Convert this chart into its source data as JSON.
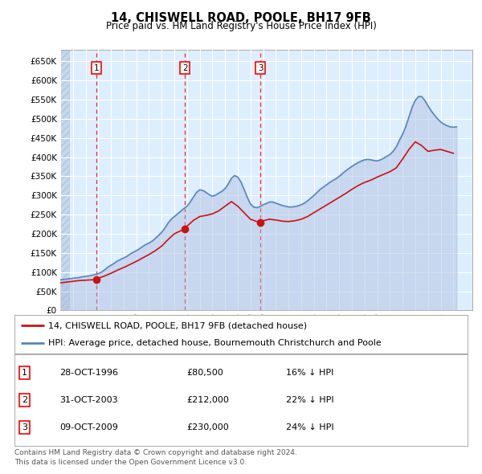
{
  "title": "14, CHISWELL ROAD, POOLE, BH17 9FB",
  "subtitle": "Price paid vs. HM Land Registry's House Price Index (HPI)",
  "ylim": [
    0,
    680000
  ],
  "yticks": [
    0,
    50000,
    100000,
    150000,
    200000,
    250000,
    300000,
    350000,
    400000,
    450000,
    500000,
    550000,
    600000,
    650000
  ],
  "ytick_labels": [
    "£0",
    "£50K",
    "£100K",
    "£150K",
    "£200K",
    "£250K",
    "£300K",
    "£350K",
    "£400K",
    "£450K",
    "£500K",
    "£550K",
    "£600K",
    "£650K"
  ],
  "xlim_start": 1994.0,
  "xlim_end": 2026.5,
  "plot_bg_color": "#ddeeff",
  "grid_color": "#ffffff",
  "line_red": "#cc1111",
  "line_blue": "#5588bb",
  "fill_blue": "#aabbdd",
  "legend_label_red": "14, CHISWELL ROAD, POOLE, BH17 9FB (detached house)",
  "legend_label_blue": "HPI: Average price, detached house, Bournemouth Christchurch and Poole",
  "sale_dates": [
    1996.83,
    2003.83,
    2009.78
  ],
  "sale_prices": [
    80500,
    212000,
    230000
  ],
  "sale_labels": [
    "1",
    "2",
    "3"
  ],
  "footer_line1": "Contains HM Land Registry data © Crown copyright and database right 2024.",
  "footer_line2": "This data is licensed under the Open Government Licence v3.0.",
  "table_rows": [
    [
      "1",
      "28-OCT-1996",
      "£80,500",
      "16% ↓ HPI"
    ],
    [
      "2",
      "31-OCT-2003",
      "£212,000",
      "22% ↓ HPI"
    ],
    [
      "3",
      "09-OCT-2009",
      "£230,000",
      "24% ↓ HPI"
    ]
  ],
  "hpi_x": [
    1994.0,
    1994.25,
    1994.5,
    1994.75,
    1995.0,
    1995.25,
    1995.5,
    1995.75,
    1996.0,
    1996.25,
    1996.5,
    1996.75,
    1997.0,
    1997.25,
    1997.5,
    1997.75,
    1998.0,
    1998.25,
    1998.5,
    1998.75,
    1999.0,
    1999.25,
    1999.5,
    1999.75,
    2000.0,
    2000.25,
    2000.5,
    2000.75,
    2001.0,
    2001.25,
    2001.5,
    2001.75,
    2002.0,
    2002.25,
    2002.5,
    2002.75,
    2003.0,
    2003.25,
    2003.5,
    2003.75,
    2004.0,
    2004.25,
    2004.5,
    2004.75,
    2005.0,
    2005.25,
    2005.5,
    2005.75,
    2006.0,
    2006.25,
    2006.5,
    2006.75,
    2007.0,
    2007.25,
    2007.5,
    2007.75,
    2008.0,
    2008.25,
    2008.5,
    2008.75,
    2009.0,
    2009.25,
    2009.5,
    2009.75,
    2010.0,
    2010.25,
    2010.5,
    2010.75,
    2011.0,
    2011.25,
    2011.5,
    2011.75,
    2012.0,
    2012.25,
    2012.5,
    2012.75,
    2013.0,
    2013.25,
    2013.5,
    2013.75,
    2014.0,
    2014.25,
    2014.5,
    2014.75,
    2015.0,
    2015.25,
    2015.5,
    2015.75,
    2016.0,
    2016.25,
    2016.5,
    2016.75,
    2017.0,
    2017.25,
    2017.5,
    2017.75,
    2018.0,
    2018.25,
    2018.5,
    2018.75,
    2019.0,
    2019.25,
    2019.5,
    2019.75,
    2020.0,
    2020.25,
    2020.5,
    2020.75,
    2021.0,
    2021.25,
    2021.5,
    2021.75,
    2022.0,
    2022.25,
    2022.5,
    2022.75,
    2023.0,
    2023.25,
    2023.5,
    2023.75,
    2024.0,
    2024.25,
    2024.5,
    2024.75,
    2025.0,
    2025.25
  ],
  "hpi_y": [
    80000,
    81000,
    82000,
    83000,
    84000,
    85000,
    86000,
    88000,
    89000,
    90000,
    92000,
    94000,
    96000,
    100000,
    106000,
    113000,
    118000,
    123000,
    129000,
    133000,
    137000,
    141000,
    147000,
    152000,
    156000,
    161000,
    167000,
    172000,
    176000,
    181000,
    188000,
    196000,
    204000,
    215000,
    228000,
    238000,
    245000,
    252000,
    259000,
    266000,
    272000,
    283000,
    296000,
    308000,
    315000,
    313000,
    308000,
    302000,
    298000,
    301000,
    306000,
    311000,
    318000,
    330000,
    345000,
    352000,
    348000,
    335000,
    316000,
    295000,
    278000,
    270000,
    268000,
    271000,
    276000,
    279000,
    283000,
    283000,
    280000,
    277000,
    274000,
    272000,
    270000,
    270000,
    271000,
    273000,
    276000,
    280000,
    286000,
    293000,
    300000,
    308000,
    316000,
    322000,
    328000,
    334000,
    339000,
    344000,
    350000,
    357000,
    364000,
    370000,
    376000,
    381000,
    386000,
    390000,
    393000,
    394000,
    393000,
    391000,
    390000,
    393000,
    397000,
    402000,
    407000,
    415000,
    427000,
    444000,
    460000,
    480000,
    505000,
    530000,
    548000,
    558000,
    558000,
    548000,
    534000,
    521000,
    510000,
    500000,
    492000,
    486000,
    482000,
    479000,
    478000,
    479000
  ],
  "red_x": [
    1994.0,
    1994.5,
    1995.0,
    1995.5,
    1996.0,
    1996.5,
    1996.83,
    1997.0,
    1997.5,
    1998.0,
    1998.5,
    1999.0,
    1999.5,
    2000.0,
    2000.5,
    2001.0,
    2001.5,
    2002.0,
    2002.5,
    2003.0,
    2003.5,
    2003.83,
    2004.0,
    2004.5,
    2005.0,
    2005.5,
    2006.0,
    2006.5,
    2007.0,
    2007.5,
    2008.0,
    2008.5,
    2009.0,
    2009.5,
    2009.78,
    2010.0,
    2010.5,
    2011.0,
    2011.5,
    2012.0,
    2012.5,
    2013.0,
    2013.5,
    2014.0,
    2014.5,
    2015.0,
    2015.5,
    2016.0,
    2016.5,
    2017.0,
    2017.5,
    2018.0,
    2018.5,
    2019.0,
    2019.5,
    2020.0,
    2020.5,
    2021.0,
    2021.5,
    2022.0,
    2022.5,
    2023.0,
    2023.5,
    2024.0,
    2024.5,
    2025.0
  ],
  "red_y": [
    72000,
    74000,
    76000,
    78000,
    79000,
    80000,
    80500,
    84000,
    90000,
    97000,
    105000,
    112000,
    120000,
    128000,
    137000,
    146000,
    156000,
    168000,
    185000,
    200000,
    208000,
    212000,
    220000,
    235000,
    245000,
    248000,
    252000,
    260000,
    272000,
    284000,
    272000,
    255000,
    238000,
    232000,
    230000,
    234000,
    238000,
    236000,
    233000,
    232000,
    234000,
    238000,
    245000,
    255000,
    265000,
    275000,
    285000,
    295000,
    305000,
    316000,
    326000,
    334000,
    340000,
    348000,
    355000,
    362000,
    372000,
    395000,
    420000,
    440000,
    430000,
    415000,
    418000,
    420000,
    415000,
    410000
  ]
}
